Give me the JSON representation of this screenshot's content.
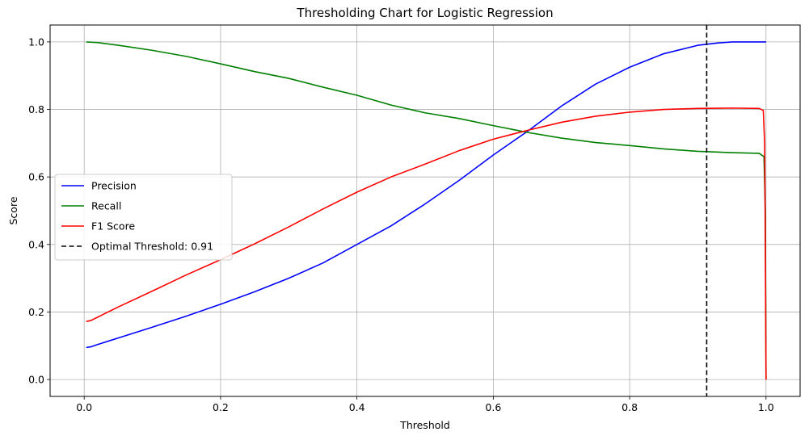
{
  "chart_data": {
    "type": "line",
    "title": "Thresholding Chart for Logistic Regression",
    "xlabel": "Threshold",
    "ylabel": "Score",
    "xlim": [
      -0.05,
      1.05
    ],
    "ylim": [
      -0.05,
      1.05
    ],
    "xticks": [
      0.0,
      0.2,
      0.4,
      0.6,
      0.8,
      1.0
    ],
    "xtick_labels": [
      "0.0",
      "0.2",
      "0.4",
      "0.6",
      "0.8",
      "1.0"
    ],
    "yticks": [
      0.0,
      0.2,
      0.4,
      0.6,
      0.8,
      1.0
    ],
    "ytick_labels": [
      "0.0",
      "0.2",
      "0.4",
      "0.6",
      "0.8",
      "1.0"
    ],
    "grid": true,
    "legend_position": "center-left",
    "series": [
      {
        "name": "Precision",
        "color": "#0000ff",
        "x": [
          0.003,
          0.01,
          0.02,
          0.05,
          0.1,
          0.15,
          0.2,
          0.25,
          0.3,
          0.35,
          0.4,
          0.45,
          0.5,
          0.55,
          0.6,
          0.65,
          0.7,
          0.75,
          0.8,
          0.85,
          0.9,
          0.93,
          0.95,
          0.97,
          1.0
        ],
        "y": [
          0.095,
          0.097,
          0.104,
          0.123,
          0.155,
          0.188,
          0.223,
          0.26,
          0.3,
          0.345,
          0.4,
          0.455,
          0.52,
          0.59,
          0.665,
          0.735,
          0.81,
          0.875,
          0.925,
          0.965,
          0.99,
          0.997,
          1.0,
          1.0,
          1.0
        ]
      },
      {
        "name": "Recall",
        "color": "#008000",
        "x": [
          0.003,
          0.02,
          0.05,
          0.1,
          0.15,
          0.2,
          0.25,
          0.3,
          0.35,
          0.4,
          0.45,
          0.5,
          0.55,
          0.6,
          0.65,
          0.7,
          0.75,
          0.8,
          0.85,
          0.9,
          0.95,
          0.99,
          0.997,
          0.999,
          1.0
        ],
        "y": [
          1.0,
          0.998,
          0.99,
          0.975,
          0.957,
          0.935,
          0.912,
          0.892,
          0.866,
          0.842,
          0.813,
          0.79,
          0.773,
          0.752,
          0.732,
          0.715,
          0.702,
          0.693,
          0.683,
          0.676,
          0.672,
          0.67,
          0.66,
          0.5,
          0.0
        ]
      },
      {
        "name": "F1 Score",
        "color": "#ff0000",
        "x": [
          0.003,
          0.01,
          0.02,
          0.05,
          0.1,
          0.15,
          0.2,
          0.25,
          0.3,
          0.35,
          0.4,
          0.45,
          0.5,
          0.55,
          0.6,
          0.65,
          0.7,
          0.75,
          0.8,
          0.85,
          0.9,
          0.95,
          0.99,
          0.996,
          0.998,
          0.999,
          1.0
        ],
        "y": [
          0.172,
          0.175,
          0.185,
          0.215,
          0.262,
          0.31,
          0.355,
          0.402,
          0.452,
          0.505,
          0.555,
          0.6,
          0.638,
          0.678,
          0.712,
          0.738,
          0.762,
          0.78,
          0.792,
          0.8,
          0.803,
          0.804,
          0.803,
          0.797,
          0.7,
          0.4,
          0.0
        ]
      },
      {
        "name": "Optimal Threshold: 0.91",
        "color": "#000000",
        "dashed": true,
        "vline_x": 0.913
      }
    ]
  }
}
